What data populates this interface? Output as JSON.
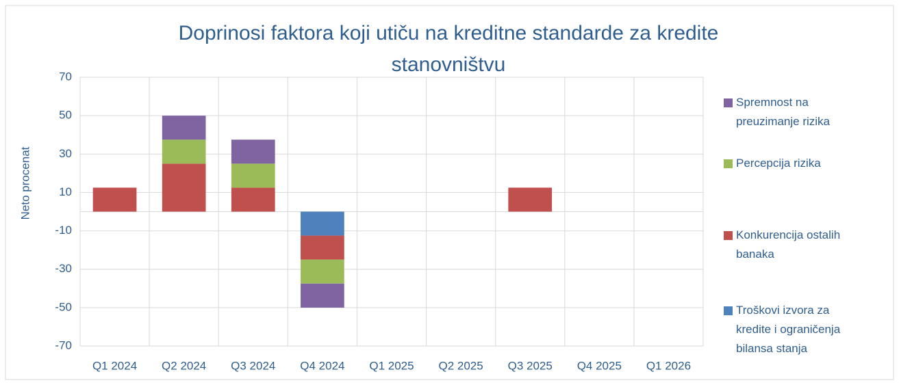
{
  "chart_data": {
    "type": "stacked_bar",
    "title": "Doprinosi faktora koji utiču na kreditne standarde za kredite stanovništvu",
    "y_label": "Neto procenat",
    "categories": [
      "Q1 2024",
      "Q2 2024",
      "Q3 2024",
      "Q4 2024",
      "Q1 2025",
      "Q2 2025",
      "Q3 2025",
      "Q4 2025",
      "Q1 2026"
    ],
    "series": [
      {
        "name": "Troškovi izvora za kredite i ograničenja bilansa stanja",
        "color": "#4f81bd",
        "values": [
          0,
          0,
          0,
          -12.5,
          0,
          0,
          0,
          0,
          0
        ]
      },
      {
        "name": "Konkurencija ostalih banaka",
        "color": "#c0504d",
        "values": [
          12.5,
          25,
          12.5,
          -12.5,
          0,
          0,
          12.5,
          0,
          0
        ]
      },
      {
        "name": "Percepcija rizika",
        "color": "#9bbb59",
        "values": [
          0,
          12.5,
          12.5,
          -12.5,
          0,
          0,
          0,
          0,
          0
        ]
      },
      {
        "name": "Spremnost na preuzimanje rizika",
        "color": "#8064a2",
        "values": [
          0,
          12.5,
          12.5,
          -12.5,
          0,
          0,
          0,
          0,
          0
        ]
      }
    ],
    "ylim": [
      -70,
      70
    ],
    "yticks": [
      -70,
      -50,
      -30,
      -10,
      10,
      30,
      50,
      70
    ],
    "grid": true
  }
}
